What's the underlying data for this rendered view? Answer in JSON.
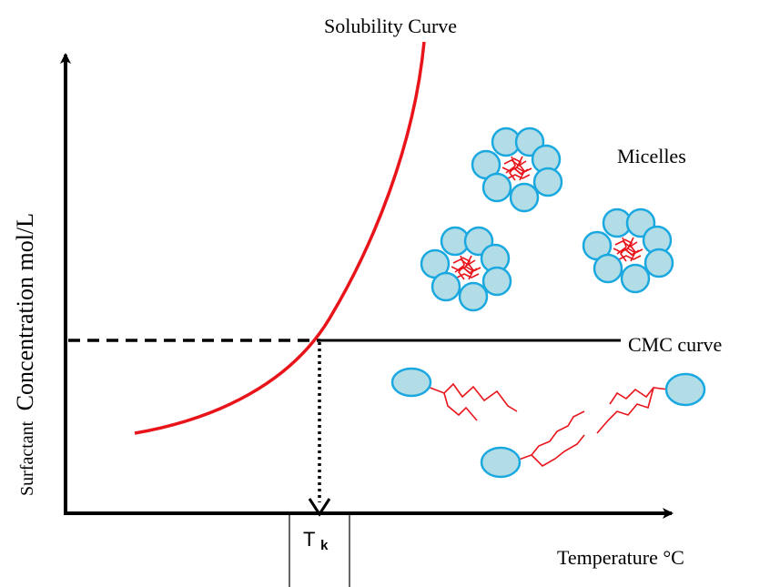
{
  "labels": {
    "solubility_curve": "Solubility Curve",
    "micelles": "Micelles",
    "cmc_curve": "CMC curve",
    "y_axis": "Surfactant Concentration mol/L",
    "y_axis_prefix": "Surfactant",
    "y_axis_rest": "Concentration  mol/L",
    "x_axis": "Temperature °C",
    "tk_main": "T",
    "tk_sub": "k"
  },
  "colors": {
    "solubility_curve": "#e8141a",
    "head_fill": "#b3dde6",
    "head_stroke": "#1aa8e0",
    "tail": "#e8141a",
    "axis": "#000000"
  },
  "icons": {
    "micelle": "micelle-icon",
    "monomer": "surfactant-monomer-icon"
  }
}
